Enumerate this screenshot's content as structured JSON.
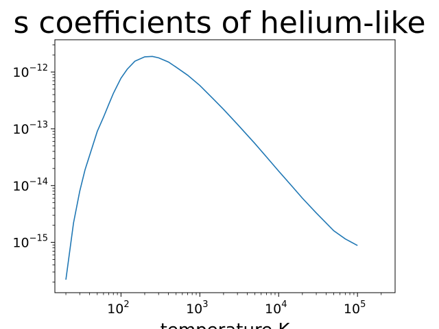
{
  "chart_data": {
    "type": "line",
    "title": "s coefficients of helium-like",
    "xlabel": "temperature K",
    "ylabel": "",
    "xscale": "log",
    "yscale": "log",
    "xlim": [
      14.5,
      300000
    ],
    "ylim": [
      1.3e-16,
      3.7e-12
    ],
    "grid": false,
    "line_color": "#1f77b4",
    "x_ticks": [
      {
        "base": "10",
        "exp": "2",
        "value": 100
      },
      {
        "base": "10",
        "exp": "3",
        "value": 1000
      },
      {
        "base": "10",
        "exp": "4",
        "value": 10000
      },
      {
        "base": "10",
        "exp": "5",
        "value": 100000
      }
    ],
    "y_ticks": [
      {
        "base": "10",
        "exp": "−15",
        "value": 1e-15
      },
      {
        "base": "10",
        "exp": "−14",
        "value": 1e-14
      },
      {
        "base": "10",
        "exp": "−13",
        "value": 1e-13
      },
      {
        "base": "10",
        "exp": "−12",
        "value": 1e-12
      }
    ],
    "series": [
      {
        "x": [
          20,
          25,
          30,
          35,
          40,
          50,
          60,
          70,
          80,
          100,
          120,
          150,
          200,
          250,
          300,
          400,
          500,
          700,
          1000,
          1500,
          2000,
          3000,
          5000,
          7000,
          10000,
          15000,
          20000,
          30000,
          50000,
          70000,
          100000
        ],
        "y": [
          2.2e-16,
          2.2e-15,
          8e-15,
          1.9e-14,
          3.4e-14,
          9e-14,
          1.6e-13,
          2.7e-13,
          4.2e-13,
          7.8e-13,
          1.12e-12,
          1.55e-12,
          1.85e-12,
          1.88e-12,
          1.78e-12,
          1.5e-12,
          1.22e-12,
          8.8e-13,
          5.8e-13,
          3.3e-13,
          2.2e-13,
          1.2e-13,
          5.5e-14,
          3.2e-14,
          1.8e-14,
          9.5e-15,
          6e-15,
          3.3e-15,
          1.6e-15,
          1.15e-15,
          8.8e-16
        ]
      }
    ]
  }
}
